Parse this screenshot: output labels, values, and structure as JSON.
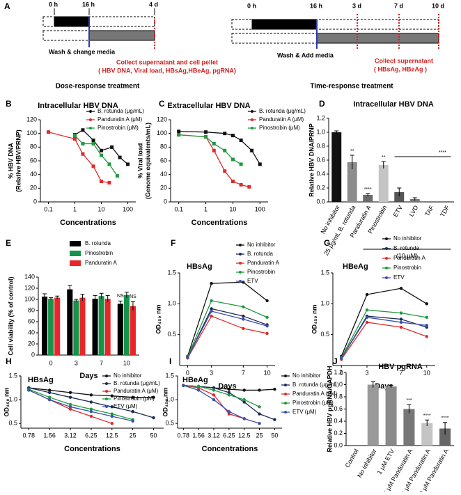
{
  "timeline": {
    "panel": "A",
    "left": {
      "times": [
        "0 h",
        "16 h",
        "4 d"
      ],
      "wash": "Wash & change media",
      "collect": "Collect supernatant and cell pellet",
      "assays": "( HBV DNA, Viral load, HBsAg,HBeAg, pgRNA)",
      "caption": "Dose-response treatment"
    },
    "right": {
      "times": [
        "0 h",
        "16 h",
        "3 d",
        "7 d",
        "10 d"
      ],
      "wash": "Wash & Add media",
      "collect": "Collect supernatant",
      "assays": "( HBsAg, HBeAg )",
      "caption": "Time-response treatment"
    }
  },
  "chart_data": [
    {
      "type": "scatter",
      "panel": "B",
      "title": "Intracellular HBV DNA",
      "xlabel": "Concentrations",
      "ylabel": [
        "% HBV DNA",
        "(Relative HBV/PRNP)"
      ],
      "xscale": "log",
      "xlim": [
        0.05,
        200
      ],
      "xticks": [
        0.1,
        1,
        10,
        100
      ],
      "ylim": [
        0,
        120
      ],
      "yticks": [
        0,
        20,
        40,
        60,
        80,
        100,
        120
      ],
      "series": [
        {
          "name": "B. rotunda (μg/mL)",
          "color": "#111111",
          "x": [
            1,
            2,
            5,
            10,
            25,
            50,
            100
          ],
          "values": [
            98,
            105,
            90,
            75,
            80,
            65,
            55
          ]
        },
        {
          "name": "Panduratin A (μM)",
          "color": "#e02a2a",
          "x": [
            0.1,
            1,
            2,
            5,
            10,
            20
          ],
          "values": [
            102,
            92,
            70,
            52,
            30,
            28
          ]
        },
        {
          "name": "Pinostrobin (μM)",
          "color": "#1e9a3c",
          "x": [
            1,
            2,
            5,
            10,
            20,
            40
          ],
          "values": [
            97,
            85,
            85,
            68,
            55,
            38
          ]
        }
      ]
    },
    {
      "type": "scatter",
      "panel": "C",
      "title": "Extracellular HBV DNA",
      "xlabel": "Concentrations",
      "ylabel": [
        "% Viral load",
        "(Genome equivalents/mL)"
      ],
      "xscale": "log",
      "xlim": [
        0.05,
        200
      ],
      "xticks": [
        0.1,
        1,
        10,
        100
      ],
      "ylim": [
        0,
        120
      ],
      "yticks": [
        0,
        20,
        40,
        60,
        80,
        100,
        120
      ],
      "series": [
        {
          "name": "B. rotunda (μg/mL)",
          "color": "#111111",
          "x": [
            0.1,
            1,
            5,
            10,
            20,
            50,
            100
          ],
          "values": [
            103,
            102,
            100,
            97,
            90,
            75,
            55
          ]
        },
        {
          "name": "Panduratin A (μM)",
          "color": "#e02a2a",
          "x": [
            0.1,
            1,
            2,
            5,
            10,
            20,
            40
          ],
          "values": [
            98,
            95,
            75,
            45,
            30,
            25,
            22
          ]
        },
        {
          "name": "Pinostrobin (μM)",
          "color": "#1e9a3c",
          "x": [
            0.1,
            1,
            2,
            5,
            10,
            20
          ],
          "values": [
            98,
            95,
            85,
            75,
            62,
            55
          ]
        }
      ]
    },
    {
      "type": "bar",
      "panel": "D",
      "title": "Intracellular HBV DNA",
      "ylabel": [
        "Relative HBV DNA/PRNP"
      ],
      "categories": [
        "No inhibitor",
        "25 μg/mL B. rotunda",
        "Panduratin A",
        "Pinostrobin",
        "ETV",
        "LVD",
        "TAF",
        "TDF"
      ],
      "values": [
        1.0,
        0.57,
        0.1,
        0.53,
        0.14,
        0.04,
        0,
        0
      ],
      "errors": [
        0.02,
        0.1,
        0.02,
        0.05,
        0.06,
        0.02,
        0,
        0
      ],
      "colors": [
        "#111111",
        "#8c8c8c",
        "#6a6a6a",
        "#c4c4c4",
        "#555555",
        "#777777",
        "#666666",
        "#666666"
      ],
      "significance": [
        null,
        "**",
        "****",
        "**",
        null,
        null,
        null,
        null
      ],
      "annotations": [
        "****",
        "(10 μM)"
      ],
      "ylim": [
        0,
        1.2
      ],
      "yticks": [
        {
          "value": 0,
          "label": "0.0"
        },
        0.2,
        0.4,
        0.6,
        0.8,
        {
          "value": 1,
          "label": "1.0"
        },
        1.2
      ]
    },
    {
      "type": "grouped_bar",
      "panel": "E",
      "xlabel": "Days",
      "ylabel": [
        "Cell viability (% of control)"
      ],
      "categories": [
        "0",
        "3",
        "7",
        "10"
      ],
      "ylim": [
        0,
        140
      ],
      "yticks": [
        0,
        20,
        40,
        60,
        80,
        100,
        120,
        140
      ],
      "series": [
        {
          "name": "B. rotunda",
          "color": "#000000",
          "values": [
            105,
            118,
            101,
            92
          ],
          "errors": [
            5,
            7,
            6,
            5
          ],
          "significance": [
            null,
            null,
            null,
            "NS"
          ]
        },
        {
          "name": "Pinostrobin",
          "color": "#16934a",
          "values": [
            101,
            98,
            106,
            108
          ],
          "errors": [
            2,
            2,
            5,
            5
          ],
          "significance": [
            null,
            null,
            null,
            null
          ]
        },
        {
          "name": "Panduratin A",
          "color": "#e8262a",
          "values": [
            103,
            103,
            101,
            88
          ],
          "errors": [
            3,
            6,
            6,
            8
          ],
          "significance": [
            null,
            null,
            null,
            "NS"
          ]
        }
      ]
    },
    {
      "type": "line",
      "panel": "F",
      "title": "HBsAg",
      "xlabel": "Days",
      "ylabel": [
        "OD₄₅₀ nm"
      ],
      "x": [
        0,
        3,
        7,
        10
      ],
      "xlim": [
        -1,
        11
      ],
      "xticks": [
        0,
        3,
        7,
        10
      ],
      "ylim": [
        0,
        1.5
      ],
      "yticks": [
        0.5,
        {
          "value": 1,
          "label": "1.0"
        },
        1.5
      ],
      "series": [
        {
          "name": "No inhibitor",
          "color": "#111111",
          "values": [
            0.15,
            1.33,
            1.35,
            1.05
          ]
        },
        {
          "name": "B. rotunda",
          "color": "#1b2a55",
          "values": [
            0.13,
            0.92,
            0.8,
            0.66
          ]
        },
        {
          "name": "Panduratin A",
          "color": "#e02a2a",
          "values": [
            0.12,
            0.8,
            0.6,
            0.52
          ]
        },
        {
          "name": "Pinostrobin",
          "color": "#1e9a3c",
          "values": [
            0.14,
            1.05,
            0.95,
            0.78
          ]
        },
        {
          "name": "ETV",
          "color": "#3b4fb0",
          "values": [
            0.13,
            0.88,
            0.75,
            0.64
          ]
        }
      ]
    },
    {
      "type": "line",
      "panel": "G",
      "title": "HBeAg",
      "xlabel": "Days",
      "ylabel": [
        "OD₄₅₀ nm"
      ],
      "x": [
        0,
        3,
        7,
        10
      ],
      "xlim": [
        -1,
        11
      ],
      "xticks": [
        0,
        3,
        7,
        10
      ],
      "ylim": [
        0,
        1.5
      ],
      "yticks": [
        0.5,
        {
          "value": 1,
          "label": "1.0"
        },
        1.5
      ],
      "series": [
        {
          "name": "No inhibitor",
          "color": "#111111",
          "values": [
            0.15,
            1.15,
            1.25,
            1.0
          ]
        },
        {
          "name": "B. rotunda",
          "color": "#1b2a55",
          "values": [
            0.12,
            0.8,
            0.75,
            0.62
          ]
        },
        {
          "name": "Panduratin A",
          "color": "#e02a2a",
          "values": [
            0.1,
            0.7,
            0.62,
            0.47
          ]
        },
        {
          "name": "Pinostrobin",
          "color": "#1e9a3c",
          "values": [
            0.13,
            0.9,
            0.85,
            0.78
          ]
        },
        {
          "name": "ETV",
          "color": "#3b4fb0",
          "values": [
            0.12,
            0.78,
            0.7,
            0.65
          ]
        }
      ]
    },
    {
      "type": "line",
      "panel": "H",
      "title": "HBsAg",
      "xlabel": "Concentrations",
      "ylabel": [
        "OD₄₅₀ nm"
      ],
      "xscale": "log",
      "x": [
        0.78,
        1.56,
        3.12,
        6.25,
        12.5,
        25,
        50
      ],
      "xlim": [
        0.6,
        70
      ],
      "xticks": [
        0.78,
        1.56,
        3.12,
        6.25,
        12.5,
        25,
        50
      ],
      "ylim": [
        0.4,
        1.5
      ],
      "yticks": [
        0.5,
        {
          "value": 1,
          "label": "1.0"
        },
        1.5
      ],
      "series": [
        {
          "name": "No inhibitor",
          "color": "#111111",
          "values": [
            1.25,
            1.2,
            1.15,
            1.1,
            1.08,
            1.05,
            1.05
          ]
        },
        {
          "name": "B. rotunda (μg/mL)",
          "color": "#1b2a55",
          "values": [
            1.25,
            1.15,
            1.05,
            0.95,
            0.85,
            0.75,
            0.62
          ]
        },
        {
          "name": "Panduratin A (μM)",
          "color": "#e02a2a",
          "values": [
            1.2,
            1.0,
            0.8,
            0.65,
            0.5,
            null,
            null
          ]
        },
        {
          "name": "Pinostrobin (μM)",
          "color": "#1e9a3c",
          "values": [
            1.22,
            1.05,
            0.9,
            0.8,
            0.7,
            0.58,
            null
          ]
        },
        {
          "name": "ETV (μM)",
          "color": "#3b4fb0",
          "values": [
            1.2,
            1.0,
            0.85,
            0.75,
            0.65,
            0.55,
            null
          ]
        }
      ]
    },
    {
      "type": "line",
      "panel": "I",
      "title": "HBeAg",
      "xlabel": "Concentrations",
      "ylabel": [
        "OD₄₅₀ nm"
      ],
      "xscale": "log",
      "x": [
        0.78,
        1.56,
        3.12,
        6.25,
        12.5,
        25,
        50
      ],
      "xlim": [
        0.6,
        70
      ],
      "xticks": [
        0.78,
        1.56,
        3.12,
        6.25,
        12.5,
        25,
        50
      ],
      "ylim": [
        0.4,
        1.5
      ],
      "yticks": [
        0.5,
        {
          "value": 1,
          "label": "1.0"
        },
        1.5
      ],
      "series": [
        {
          "name": "No inhibitor",
          "color": "#111111",
          "values": [
            1.3,
            1.28,
            1.25,
            1.22,
            1.2,
            1.2,
            1.22
          ]
        },
        {
          "name": "B. rotunda (μg/mL)",
          "color": "#1b2a55",
          "values": [
            1.3,
            1.28,
            1.25,
            1.15,
            0.95,
            0.7,
            0.58
          ]
        },
        {
          "name": "Panduratin A (μM)",
          "color": "#e02a2a",
          "values": [
            1.3,
            1.25,
            1.1,
            0.7,
            0.6,
            null,
            null
          ]
        },
        {
          "name": "Pinostrobin (μM)",
          "color": "#1e9a3c",
          "values": [
            1.3,
            1.28,
            1.2,
            1.1,
            1.0,
            0.85,
            null
          ]
        },
        {
          "name": "ETV (μM)",
          "color": "#3b4fb0",
          "values": [
            1.3,
            1.2,
            1.0,
            0.75,
            0.6,
            0.5,
            null
          ]
        }
      ]
    },
    {
      "type": "bar",
      "panel": "J",
      "title": "HBV pgRNA",
      "ylabel": [
        "Relative HBV pgRNA/GAPDH"
      ],
      "categories": [
        "Control",
        "No inhibitor",
        "1 μM ETV",
        "2.5 μM Panduratin A",
        "5 μM Panduratin A",
        "10 μM Panduratin A"
      ],
      "values": [
        0,
        1.0,
        0.97,
        0.6,
        0.37,
        0.28
      ],
      "errors": [
        0,
        0.05,
        0.02,
        0.07,
        0.05,
        0.1
      ],
      "colors": [
        "#111111",
        "#9a9a9a",
        "#8a8a8a",
        "#777777",
        "#c4c4c4",
        "#666666"
      ],
      "significance": [
        null,
        null,
        null,
        "***",
        "****",
        "****"
      ],
      "ylim": [
        0,
        1.2
      ],
      "yticks": [
        {
          "value": 0,
          "label": "0.0"
        },
        0.2,
        0.4,
        0.6,
        0.8,
        {
          "value": 1,
          "label": "1.0"
        },
        1.2
      ]
    }
  ]
}
